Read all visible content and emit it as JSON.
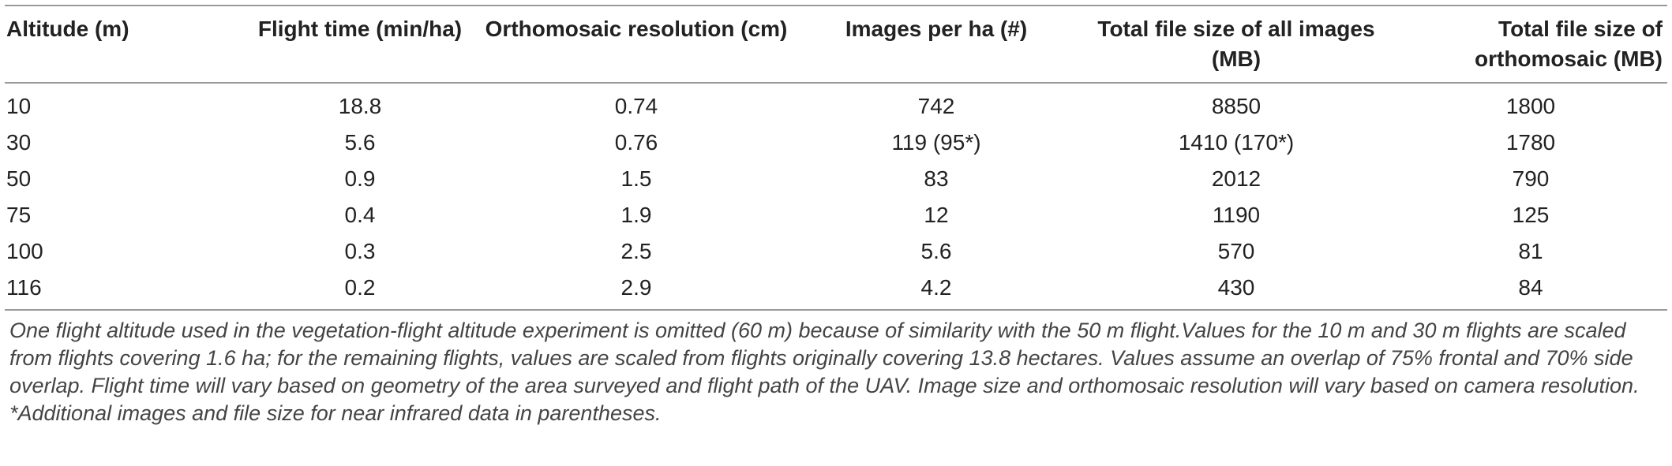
{
  "table": {
    "header": [
      "Altitude (m)",
      "Flight time (min/ha)",
      "Orthomosaic resolution (cm)",
      "Images per ha (#)",
      "Total file size of all images (MB)",
      "Total file size of orthomosaic (MB)"
    ],
    "rows": [
      [
        "10",
        "18.8",
        "0.74",
        "742",
        "8850",
        "1800"
      ],
      [
        "30",
        "5.6",
        "0.76",
        "119 (95*)",
        "1410 (170*)",
        "1780"
      ],
      [
        "50",
        "0.9",
        "1.5",
        "83",
        "2012",
        "790"
      ],
      [
        "75",
        "0.4",
        "1.9",
        "12",
        "1190",
        "125"
      ],
      [
        "100",
        "0.3",
        "2.5",
        "5.6",
        "570",
        "81"
      ],
      [
        "116",
        "0.2",
        "2.9",
        "4.2",
        "430",
        "84"
      ]
    ],
    "note": "One flight altitude used in the vegetation-flight altitude experiment is omitted (60 m) because of similarity with the 50 m flight.Values for the 10 m and 30 m flights are scaled from flights covering 1.6 ha; for the remaining flights, values are scaled from flights originally covering 13.8 hectares. Values assume an overlap of 75% frontal and 70% side overlap. Flight time will vary based on geometry of the area surveyed and flight path of the UAV. Image size and orthomosaic resolution will vary based on camera resolution. *Additional images and file size for near infrared data in parentheses."
  }
}
